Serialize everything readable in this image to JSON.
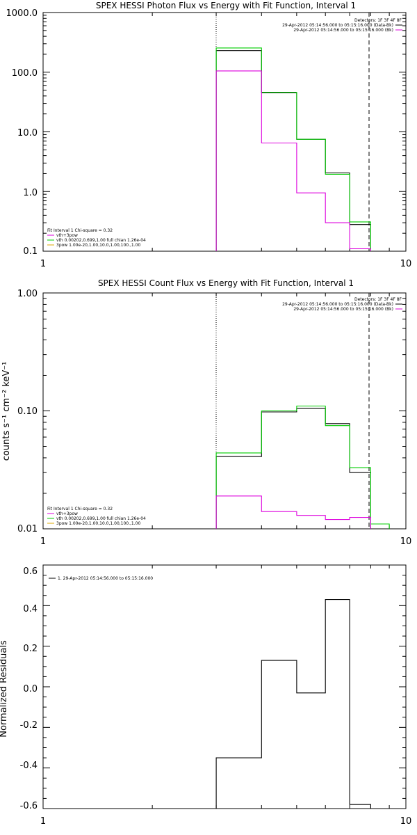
{
  "chart_data": [
    {
      "type": "line",
      "title": "SPEX HESSI Photon Flux vs Energy with Fit Function, Interval 1",
      "xscale": "log",
      "yscale": "log",
      "xlim": [
        1,
        10
      ],
      "ylim": [
        0.1,
        1000
      ],
      "xticks": [
        "1",
        "10"
      ],
      "yticks": [
        "0.1",
        "1.0",
        "10.0",
        "100.0",
        "1000.0"
      ],
      "ylabel": "",
      "energy_low_marker": 3.0,
      "energy_high_marker": 8.0,
      "legend_top": [
        "Detectors: 1F 3F 4F 8F",
        "29-Apr-2012 05:14:56.000 to 05:15:16.000 (Data-Bk)",
        "29-Apr-2012 05:14:56.000 to 05:15:16.000 (Bk)"
      ],
      "legend_bottom": [
        "Fit Interval 1   Chi-square = 0.32",
        "vth+3pow",
        "vth 0.00202,0.699,1.00  full chian 1.26e-04",
        "3pow 1.00e-20,1.00,10.0,1.00,100.,1.00"
      ],
      "series": [
        {
          "name": "black",
          "color": "#000000",
          "edges": [
            3,
            4,
            5,
            6,
            7,
            8
          ],
          "values": [
            230,
            45,
            7.5,
            2.05,
            0.28
          ]
        },
        {
          "name": "green",
          "color": "#00cc00",
          "edges": [
            3,
            4,
            5,
            6,
            7,
            8
          ],
          "values": [
            255,
            46,
            7.5,
            1.95,
            0.31
          ]
        },
        {
          "name": "magenta",
          "color": "#dd00dd",
          "edges": [
            3,
            4,
            5,
            6,
            7,
            8
          ],
          "values": [
            105,
            6.5,
            0.95,
            0.3,
            0.11
          ]
        }
      ]
    },
    {
      "type": "line",
      "title": "SPEX HESSI Count Flux vs Energy with Fit Function, Interval 1",
      "xscale": "log",
      "yscale": "log",
      "xlim": [
        1,
        10
      ],
      "ylim": [
        0.01,
        1.0
      ],
      "xticks": [
        "1",
        "10"
      ],
      "yticks": [
        "0.01",
        "0.10",
        "1.00"
      ],
      "ylabel": "counts s⁻¹ cm⁻² keV⁻¹",
      "energy_low_marker": 3.0,
      "energy_high_marker": 8.0,
      "legend_top": [
        "Detectors: 1F 3F 4F 8F",
        "29-Apr-2012 05:14:56.000 to 05:15:16.000 (Data-Bk)",
        "29-Apr-2012 05:14:56.000 to 05:15:16.000 (Bk)"
      ],
      "legend_bottom": [
        "Fit Interval 1   Chi-square = 0.32",
        "vth+3pow",
        "vth 0.00202,0.699,1.00  full chian 1.26e-04",
        "3pow 1.00e-20,1.00,10.0,1.00,100.,1.00"
      ],
      "series": [
        {
          "name": "black",
          "color": "#000000",
          "edges": [
            3,
            4,
            5,
            6,
            7,
            8
          ],
          "values": [
            0.041,
            0.098,
            0.105,
            0.078,
            0.03
          ]
        },
        {
          "name": "green",
          "color": "#00cc00",
          "edges": [
            3,
            4,
            5,
            6,
            7,
            8,
            9
          ],
          "values": [
            0.044,
            0.1,
            0.11,
            0.075,
            0.033,
            0.011
          ]
        },
        {
          "name": "magenta",
          "color": "#dd00dd",
          "edges": [
            3,
            4,
            5,
            6,
            7,
            8
          ],
          "values": [
            0.019,
            0.014,
            0.013,
            0.012,
            0.0125
          ]
        }
      ]
    },
    {
      "type": "line",
      "title": "",
      "xscale": "log",
      "yscale": "linear",
      "xlim": [
        1,
        10
      ],
      "ylim": [
        -0.6,
        0.6
      ],
      "xticks": [
        "1",
        "10"
      ],
      "yticks": [
        "-0.6",
        "-0.4",
        "-0.2",
        "0.0",
        "0.2",
        "0.4",
        "0.6"
      ],
      "ylabel": "Normalized Residuals",
      "legend_top": [
        "1. 29-Apr-2012 05:14:56.000 to 05:15:16.000"
      ],
      "series": [
        {
          "name": "residuals",
          "color": "#000000",
          "edges": [
            3,
            4,
            5,
            6,
            7,
            8
          ],
          "values": [
            -0.35,
            0.13,
            -0.03,
            0.43,
            -0.58
          ]
        }
      ]
    }
  ]
}
